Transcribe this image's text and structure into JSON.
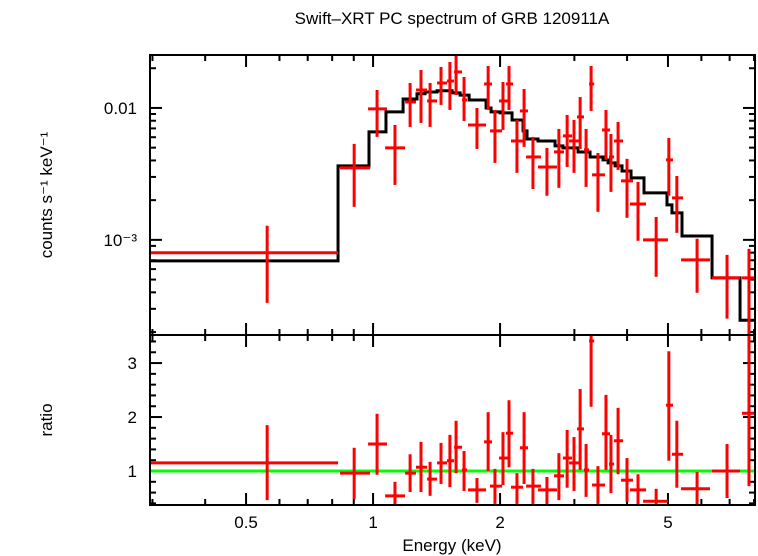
{
  "chart_data": {
    "type": "scatter",
    "title": "Swift–XRT PC spectrum of GRB 120911A",
    "xlabel": "Energy (keV)",
    "top_ylabel": "counts s⁻¹ keV⁻¹",
    "bottom_ylabel": "ratio",
    "x_scale": "log",
    "top_y_scale": "log",
    "bottom_y_scale": "linear",
    "xlim": [
      0.296,
      8.04
    ],
    "top_ylim": [
      0.00019,
      0.0252
    ],
    "bottom_ylim": [
      0.37,
      3.52
    ],
    "x_ticks": [
      {
        "v": 0.5,
        "label": "0.5"
      },
      {
        "v": 1,
        "label": "1"
      },
      {
        "v": 2,
        "label": "2"
      },
      {
        "v": 5,
        "label": "5"
      }
    ],
    "top_y_ticks": [
      {
        "v": 0.01,
        "label": "0.01"
      },
      {
        "v": 0.001,
        "label": "10⁻³"
      }
    ],
    "bottom_y_ticks": [
      {
        "v": 1,
        "label": "1"
      },
      {
        "v": 2,
        "label": "2"
      },
      {
        "v": 3,
        "label": "3"
      }
    ],
    "grid": false,
    "colors": {
      "data": "#ff0000",
      "model": "#000000",
      "ratio_unity": "#00ff00"
    },
    "ratio_reference": 1,
    "data": [
      {
        "e": 0.561,
        "elo": 0.296,
        "ehi": 0.826,
        "c": 0.000798,
        "clo": 0.000333,
        "chi": 0.00128,
        "r": 1.15,
        "rlo": 0.46,
        "rhi": 1.85
      },
      {
        "e": 0.902,
        "elo": 0.835,
        "ehi": 0.984,
        "c": 0.00351,
        "clo": 0.00178,
        "chi": 0.00534,
        "r": 0.96,
        "rlo": 0.48,
        "rhi": 1.43
      },
      {
        "e": 1.022,
        "elo": 0.973,
        "ehi": 1.079,
        "c": 0.00983,
        "clo": 0.00603,
        "chi": 0.01368,
        "r": 1.5,
        "rlo": 0.93,
        "rhi": 2.06
      },
      {
        "e": 1.127,
        "elo": 1.068,
        "ehi": 1.191,
        "c": 0.00498,
        "clo": 0.00261,
        "chi": 0.00743,
        "r": 0.54,
        "rlo": 0.33,
        "rhi": 0.8
      },
      {
        "e": 1.224,
        "elo": 1.191,
        "ehi": 1.264,
        "c": 0.0111,
        "clo": 0.00718,
        "chi": 0.01546,
        "r": 0.96,
        "rlo": 0.61,
        "rhi": 1.31
      },
      {
        "e": 1.299,
        "elo": 1.264,
        "ehi": 1.343,
        "c": 0.01368,
        "clo": 0.0077,
        "chi": 0.0194,
        "r": 1.07,
        "rlo": 0.61,
        "rhi": 1.54
      },
      {
        "e": 1.365,
        "elo": 1.343,
        "ehi": 1.418,
        "c": 0.0113,
        "clo": 0.00718,
        "chi": 0.01546,
        "r": 0.85,
        "rlo": 0.54,
        "rhi": 1.17
      },
      {
        "e": 1.449,
        "elo": 1.418,
        "ehi": 1.497,
        "c": 0.01546,
        "clo": 0.01054,
        "chi": 0.02045,
        "r": 1.15,
        "rlo": 0.76,
        "rhi": 1.52
      },
      {
        "e": 1.521,
        "elo": 1.497,
        "ehi": 1.556,
        "c": 0.016,
        "clo": 0.00966,
        "chi": 0.0223,
        "r": 1.19,
        "rlo": 0.7,
        "rhi": 1.67
      },
      {
        "e": 1.573,
        "elo": 1.556,
        "ehi": 1.625,
        "c": 0.01875,
        "clo": 0.01254,
        "chi": 0.0252,
        "r": 1.44,
        "rlo": 0.96,
        "rhi": 1.93
      },
      {
        "e": 1.643,
        "elo": 1.625,
        "ehi": 1.67,
        "c": 0.0115,
        "clo": 0.00797,
        "chi": 0.01717,
        "r": 1.02,
        "rlo": 0.63,
        "rhi": 1.37
      },
      {
        "e": 1.763,
        "elo": 1.679,
        "ehi": 1.853,
        "c": 0.00743,
        "clo": 0.00489,
        "chi": 0.01,
        "r": 0.65,
        "rlo": 0.41,
        "rhi": 0.87
      },
      {
        "e": 1.874,
        "elo": 1.833,
        "ehi": 1.914,
        "c": 0.0152,
        "clo": 0.00966,
        "chi": 0.0208,
        "r": 1.54,
        "rlo": 1.0,
        "rhi": 2.09
      },
      {
        "e": 1.945,
        "elo": 1.893,
        "ehi": 2.022,
        "c": 0.0067,
        "clo": 0.00383,
        "chi": 0.00966,
        "r": 0.72,
        "rlo": 0.39,
        "rhi": 1.04
      },
      {
        "e": 2.032,
        "elo": 1.989,
        "ehi": 2.089,
        "c": 0.0113,
        "clo": 0.00681,
        "chi": 0.01574,
        "r": 1.24,
        "rlo": 0.74,
        "rhi": 1.72
      },
      {
        "e": 2.1,
        "elo": 2.066,
        "ehi": 2.147,
        "c": 0.0152,
        "clo": 0.00966,
        "chi": 0.0208,
        "r": 1.7,
        "rlo": 1.07,
        "rhi": 2.31
      },
      {
        "e": 2.193,
        "elo": 2.123,
        "ehi": 2.267,
        "c": 0.00562,
        "clo": 0.00322,
        "chi": 0.00811,
        "r": 0.7,
        "rlo": 0.39,
        "rhi": 0.96
      },
      {
        "e": 2.28,
        "elo": 2.229,
        "ehi": 2.329,
        "c": 0.00949,
        "clo": 0.00507,
        "chi": 0.01393,
        "r": 1.43,
        "rlo": 0.76,
        "rhi": 2.09
      },
      {
        "e": 2.393,
        "elo": 2.305,
        "ehi": 2.5,
        "c": 0.00425,
        "clo": 0.00243,
        "chi": 0.00603,
        "r": 0.72,
        "rlo": 0.39,
        "rhi": 1.04
      },
      {
        "e": 2.583,
        "elo": 2.46,
        "ehi": 2.729,
        "c": 0.00357,
        "clo": 0.00216,
        "chi": 0.00498,
        "r": 0.65,
        "rlo": 0.35,
        "rhi": 0.89
      },
      {
        "e": 2.757,
        "elo": 2.685,
        "ehi": 2.835,
        "c": 0.00464,
        "clo": 0.00248,
        "chi": 0.00693,
        "r": 0.91,
        "rlo": 0.46,
        "rhi": 1.33
      },
      {
        "e": 2.884,
        "elo": 2.818,
        "ehi": 2.962,
        "c": 0.00614,
        "clo": 0.00357,
        "chi": 0.00885,
        "r": 1.24,
        "rlo": 0.69,
        "rhi": 1.76
      },
      {
        "e": 2.994,
        "elo": 2.914,
        "ehi": 3.076,
        "c": 0.00562,
        "clo": 0.00322,
        "chi": 0.00811,
        "r": 1.15,
        "rlo": 0.63,
        "rhi": 1.63
      },
      {
        "e": 3.096,
        "elo": 3.043,
        "ehi": 3.162,
        "c": 0.00855,
        "clo": 0.00489,
        "chi": 0.0121,
        "r": 1.78,
        "rlo": 1.02,
        "rhi": 2.52
      },
      {
        "e": 3.198,
        "elo": 3.162,
        "ehi": 3.251,
        "c": 0.00481,
        "clo": 0.00252,
        "chi": 0.00693,
        "r": 1.02,
        "rlo": 0.52,
        "rhi": 1.5
      },
      {
        "e": 3.287,
        "elo": 3.251,
        "ehi": 3.342,
        "c": 0.0152,
        "clo": 0.00949,
        "chi": 0.0208,
        "r": 3.41,
        "rlo": 2.19,
        "rhi": 3.6
      },
      {
        "e": 3.412,
        "elo": 3.304,
        "ehi": 3.546,
        "c": 0.00311,
        "clo": 0.00163,
        "chi": 0.00456,
        "r": 0.74,
        "rlo": 0.39,
        "rhi": 1.09
      },
      {
        "e": 3.565,
        "elo": 3.489,
        "ehi": 3.645,
        "c": 0.00681,
        "clo": 0.00404,
        "chi": 0.00966,
        "r": 1.69,
        "rlo": 1.02,
        "rhi": 2.41
      },
      {
        "e": 3.663,
        "elo": 3.624,
        "ehi": 3.726,
        "c": 0.00425,
        "clo": 0.00231,
        "chi": 0.00635,
        "r": 1.13,
        "rlo": 0.59,
        "rhi": 1.67
      },
      {
        "e": 3.808,
        "elo": 3.726,
        "ehi": 3.913,
        "c": 0.00562,
        "clo": 0.00339,
        "chi": 0.00783,
        "r": 1.56,
        "rlo": 0.94,
        "rhi": 2.17
      },
      {
        "e": 3.998,
        "elo": 3.87,
        "ehi": 4.131,
        "c": 0.0028,
        "clo": 0.00147,
        "chi": 0.00411,
        "r": 0.83,
        "rlo": 0.43,
        "rhi": 1.24
      },
      {
        "e": 4.246,
        "elo": 4.064,
        "ehi": 4.436,
        "c": 0.00187,
        "clo": 0.000983,
        "chi": 0.00275,
        "r": 0.65,
        "rlo": 0.35,
        "rhi": 0.94
      },
      {
        "e": 4.688,
        "elo": 4.364,
        "ehi": 5.0,
        "c": 0.001,
        "clo": 0.000525,
        "chi": 0.00149,
        "r": 0.44,
        "rlo": 0.33,
        "rhi": 0.67
      },
      {
        "e": 5.024,
        "elo": 4.947,
        "ehi": 5.14,
        "c": 0.00404,
        "clo": 0.00216,
        "chi": 0.00593,
        "r": 2.22,
        "rlo": 1.19,
        "rhi": 3.22
      },
      {
        "e": 5.248,
        "elo": 5.11,
        "ehi": 5.43,
        "c": 0.00208,
        "clo": 0.00113,
        "chi": 0.00305,
        "r": 1.31,
        "rlo": 0.69,
        "rhi": 1.93
      },
      {
        "e": 5.861,
        "elo": 5.37,
        "ehi": 6.29,
        "c": 0.000705,
        "clo": 0.000397,
        "chi": 0.00102,
        "r": 0.67,
        "rlo": 0.37,
        "rhi": 0.98
      },
      {
        "e": 6.902,
        "elo": 6.36,
        "ehi": 7.41,
        "c": 0.000515,
        "clo": 0.000253,
        "chi": 0.000769,
        "r": 1.0,
        "rlo": 0.5,
        "rhi": 1.5
      },
      {
        "e": 7.78,
        "elo": 7.49,
        "ehi": 8.04,
        "c": 0.000515,
        "clo": 0.000187,
        "chi": 0.000855,
        "r": 2.07,
        "rlo": 0.72,
        "rhi": 3.6
      }
    ],
    "model": [
      {
        "elo": 0.296,
        "ehi": 0.826,
        "c": 0.000693
      },
      {
        "elo": 0.826,
        "ehi": 0.978,
        "c": 0.00364
      },
      {
        "elo": 0.978,
        "ehi": 1.073,
        "c": 0.00658
      },
      {
        "elo": 1.073,
        "ehi": 1.178,
        "c": 0.00933
      },
      {
        "elo": 1.178,
        "ehi": 1.271,
        "c": 0.0117
      },
      {
        "elo": 1.271,
        "ehi": 1.328,
        "c": 0.0128
      },
      {
        "elo": 1.328,
        "ehi": 1.418,
        "c": 0.0132
      },
      {
        "elo": 1.418,
        "ehi": 1.539,
        "c": 0.0135
      },
      {
        "elo": 1.539,
        "ehi": 1.608,
        "c": 0.013
      },
      {
        "elo": 1.608,
        "ehi": 1.689,
        "c": 0.0125
      },
      {
        "elo": 1.689,
        "ehi": 1.853,
        "c": 0.0115
      },
      {
        "elo": 1.853,
        "ehi": 1.904,
        "c": 0.01
      },
      {
        "elo": 1.904,
        "ehi": 2.0,
        "c": 0.00933
      },
      {
        "elo": 2.0,
        "ehi": 2.135,
        "c": 0.00917
      },
      {
        "elo": 2.135,
        "ehi": 2.267,
        "c": 0.00811
      },
      {
        "elo": 2.267,
        "ehi": 2.317,
        "c": 0.0067
      },
      {
        "elo": 2.317,
        "ehi": 2.46,
        "c": 0.00582
      },
      {
        "elo": 2.46,
        "ehi": 2.7,
        "c": 0.00562
      },
      {
        "elo": 2.7,
        "ehi": 2.818,
        "c": 0.00516
      },
      {
        "elo": 2.818,
        "ehi": 3.061,
        "c": 0.00498
      },
      {
        "elo": 3.061,
        "ehi": 3.268,
        "c": 0.00464
      },
      {
        "elo": 3.268,
        "ehi": 3.508,
        "c": 0.00425
      },
      {
        "elo": 3.508,
        "ehi": 3.606,
        "c": 0.00404
      },
      {
        "elo": 3.606,
        "ehi": 3.746,
        "c": 0.00383
      },
      {
        "elo": 3.746,
        "ehi": 3.891,
        "c": 0.00364
      },
      {
        "elo": 3.891,
        "ehi": 4.087,
        "c": 0.00333
      },
      {
        "elo": 4.087,
        "ehi": 4.387,
        "c": 0.00295
      },
      {
        "elo": 4.387,
        "ehi": 4.973,
        "c": 0.00227
      },
      {
        "elo": 4.973,
        "ehi": 5.11,
        "c": 0.00184
      },
      {
        "elo": 5.11,
        "ehi": 5.398,
        "c": 0.0016
      },
      {
        "elo": 5.398,
        "ehi": 6.36,
        "c": 0.00107
      },
      {
        "elo": 6.36,
        "ehi": 7.41,
        "c": 0.000515
      },
      {
        "elo": 7.41,
        "ehi": 8.04,
        "c": 0.000246
      }
    ]
  }
}
